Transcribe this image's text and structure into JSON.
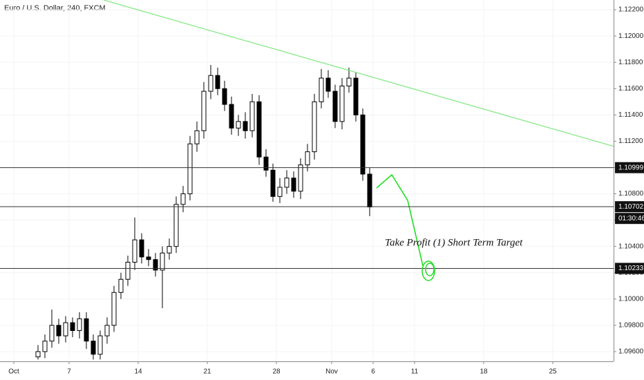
{
  "chart_data": {
    "type": "candlestick",
    "title": "Euro / U.S. Dollar, 240, FXCM",
    "xlim": [
      -1,
      43.4
    ],
    "ylim": [
      1.09526,
      1.12274
    ],
    "xticks": [
      {
        "value": 0,
        "label": "Oct"
      },
      {
        "value": 4,
        "label": "7"
      },
      {
        "value": 9,
        "label": "14"
      },
      {
        "value": 14,
        "label": "21"
      },
      {
        "value": 19,
        "label": "28"
      },
      {
        "value": 23,
        "label": "Nov"
      },
      {
        "value": 26,
        "label": "6"
      },
      {
        "value": 29,
        "label": "11"
      },
      {
        "value": 34,
        "label": "18"
      },
      {
        "value": 39,
        "label": "25"
      }
    ],
    "yticks": [
      {
        "value": 1.096,
        "label": "1.09600"
      },
      {
        "value": 1.098,
        "label": "1.09800"
      },
      {
        "value": 1.1,
        "label": "1.10000"
      },
      {
        "value": 1.102,
        "label": "1.10200"
      },
      {
        "value": 1.104,
        "label": "1.10400"
      },
      {
        "value": 1.106,
        "label": "1.10600"
      },
      {
        "value": 1.108,
        "label": "1.10800"
      },
      {
        "value": 1.11,
        "label": "1.11000"
      },
      {
        "value": 1.112,
        "label": "1.11200"
      },
      {
        "value": 1.114,
        "label": "1.11400"
      },
      {
        "value": 1.116,
        "label": "1.11600"
      },
      {
        "value": 1.118,
        "label": "1.11800"
      },
      {
        "value": 1.12,
        "label": "1.12000"
      },
      {
        "value": 1.122,
        "label": "1.12200"
      }
    ],
    "grid": true,
    "up_color": "#ffffff",
    "down_color": "#000000",
    "x": [
      1.75,
      2.25,
      2.75,
      3.25,
      3.75,
      4.25,
      4.75,
      5.25,
      5.75,
      6.25,
      6.75,
      7.25,
      7.75,
      8.25,
      8.75,
      9.25,
      9.75,
      10.25,
      10.75,
      11.25,
      11.75,
      12.25,
      12.75,
      13.25,
      13.75,
      14.25,
      14.75,
      15.25,
      15.75,
      16.25,
      16.75,
      17.25,
      17.75,
      18.25,
      18.75,
      19.25,
      19.75,
      20.25,
      20.75,
      21.25,
      21.75,
      22.25,
      22.75,
      23.25,
      23.75,
      24.25,
      24.75,
      25.25,
      25.75
    ],
    "open": [
      1.0956,
      1.096,
      1.0968,
      1.098,
      1.0972,
      1.0982,
      1.0976,
      1.0985,
      1.0968,
      1.0958,
      1.0972,
      1.098,
      1.1005,
      1.1015,
      1.1028,
      1.1045,
      1.1032,
      1.103,
      1.1022,
      1.1035,
      1.104,
      1.1072,
      1.108,
      1.1118,
      1.1128,
      1.1158,
      1.117,
      1.116,
      1.1148,
      1.113,
      1.1135,
      1.1128,
      1.115,
      1.1108,
      1.1098,
      1.1078,
      1.1085,
      1.1092,
      1.1082,
      1.1102,
      1.1112,
      1.115,
      1.1168,
      1.1158,
      1.1135,
      1.1162,
      1.1168,
      1.114,
      1.1095
    ],
    "high": [
      1.0965,
      1.0973,
      1.0992,
      1.0985,
      1.0987,
      1.0986,
      1.099,
      1.099,
      1.0973,
      1.0976,
      1.0986,
      1.101,
      1.102,
      1.1033,
      1.1062,
      1.105,
      1.1038,
      1.1035,
      1.104,
      1.1046,
      1.1078,
      1.1086,
      1.1124,
      1.1135,
      1.1165,
      1.1178,
      1.1176,
      1.1166,
      1.1154,
      1.114,
      1.1142,
      1.1156,
      1.1155,
      1.1114,
      1.1103,
      1.1092,
      1.1098,
      1.1097,
      1.1107,
      1.1118,
      1.1156,
      1.1175,
      1.1174,
      1.1163,
      1.1168,
      1.1176,
      1.1172,
      1.1145,
      1.11
    ],
    "low": [
      1.0954,
      1.0955,
      1.0963,
      1.0966,
      1.0967,
      1.0971,
      1.097,
      1.0962,
      1.0954,
      1.0954,
      1.0966,
      1.0975,
      1.1,
      1.101,
      1.1022,
      1.1027,
      1.1025,
      1.1017,
      1.0993,
      1.103,
      1.1035,
      1.1066,
      1.1075,
      1.1112,
      1.1122,
      1.1152,
      1.1155,
      1.1143,
      1.1125,
      1.1124,
      1.1122,
      1.1123,
      1.1102,
      1.1093,
      1.1074,
      1.1073,
      1.108,
      1.1077,
      1.1076,
      1.1097,
      1.1106,
      1.1145,
      1.1153,
      1.113,
      1.1129,
      1.1157,
      1.1135,
      1.109,
      1.1063
    ],
    "close": [
      1.096,
      1.0968,
      1.098,
      1.0972,
      1.0982,
      1.0976,
      1.0985,
      1.0968,
      1.0958,
      1.0972,
      1.098,
      1.1005,
      1.1015,
      1.1028,
      1.1045,
      1.1032,
      1.103,
      1.1022,
      1.1035,
      1.104,
      1.1072,
      1.108,
      1.1118,
      1.1128,
      1.1158,
      1.117,
      1.116,
      1.1148,
      1.113,
      1.1135,
      1.1128,
      1.115,
      1.1108,
      1.1098,
      1.1078,
      1.1085,
      1.1092,
      1.1082,
      1.1102,
      1.1112,
      1.115,
      1.1168,
      1.1158,
      1.1135,
      1.1162,
      1.1168,
      1.114,
      1.1095,
      1.107
    ],
    "levels": [
      1.10999,
      1.10702,
      1.10233
    ],
    "countdown": "01:30:46",
    "trendline": {
      "color": "#7ee87e",
      "x": [
        6.5,
        43.4
      ],
      "y": [
        1.12274,
        1.11161
      ]
    },
    "projection": {
      "color": "#22dd22",
      "x": [
        26.25,
        27.35,
        28.5,
        29.6
      ],
      "y": [
        1.10845,
        1.10945,
        1.1075,
        1.10252
      ]
    },
    "annotation": "Take Profit (1) Short Term Target"
  }
}
